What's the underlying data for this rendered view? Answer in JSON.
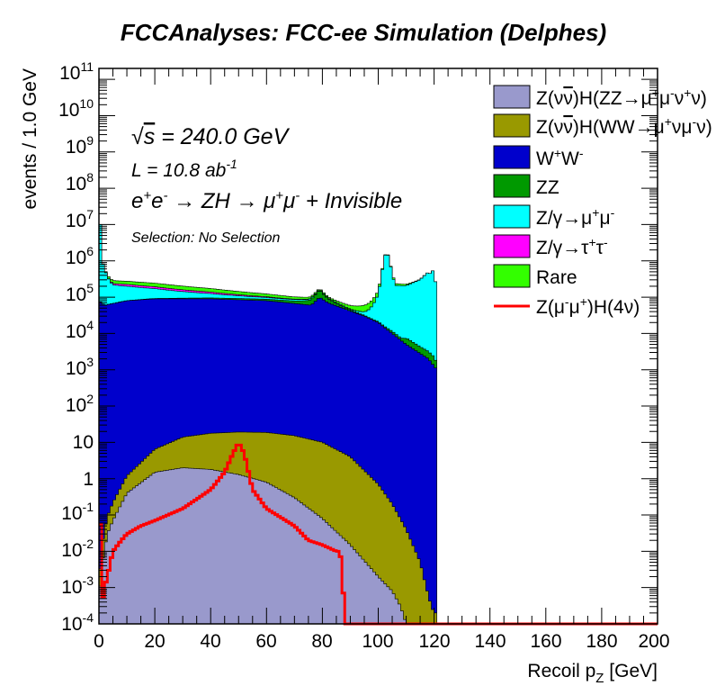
{
  "chart_data": {
    "type": "area",
    "title": "FCCAnalyses: FCC-ee Simulation (Delphes)",
    "xlabel": "Recoil p_Z [GeV]",
    "ylabel": "events / 1.0 GeV",
    "xlim": [
      0,
      200
    ],
    "ylim": [
      0.0001,
      200000000000
    ],
    "yscale": "log",
    "stacked": true,
    "legend_position": "top-right",
    "x_ticks": [
      "0",
      "20",
      "40",
      "60",
      "80",
      "100",
      "120",
      "140",
      "160",
      "180",
      "200"
    ],
    "y_ticks": [
      "10^-4",
      "10^-3",
      "10^-2",
      "10^-1",
      "1",
      "10",
      "10^2",
      "10^3",
      "10^4",
      "10^5",
      "10^6",
      "10^7",
      "10^8",
      "10^9",
      "10^10",
      "10^11"
    ],
    "annotations": {
      "sqrt_s": "= 240.0 GeV",
      "lumi": "L = 10.8 ab",
      "lumi_exp": "-1",
      "process": "e+e- → ZH → μ+μ- + Invisible",
      "selection": "Selection: No Selection"
    },
    "series": [
      {
        "name": "Z(νν̄)H(ZZ→μ+μ-ν+ν)",
        "color": "#9999cc",
        "x": [
          0,
          1,
          3,
          5,
          10,
          20,
          30,
          40,
          50,
          60,
          70,
          80,
          90,
          100,
          105,
          108,
          110,
          115,
          120,
          121
        ],
        "y": [
          0.0003,
          0.004,
          0.03,
          0.07,
          0.4,
          1.5,
          2,
          1.8,
          1.3,
          0.8,
          0.3,
          0.08,
          0.015,
          0.002,
          0.0008,
          0.0003,
          0.0001,
          0.0001,
          0.0001,
          0.0001
        ]
      },
      {
        "name": "Z(νν̄)H(WW→μ+νμ-ν)",
        "color": "#999900",
        "x": [
          0,
          1,
          3,
          5,
          10,
          20,
          30,
          40,
          50,
          60,
          70,
          80,
          90,
          100,
          105,
          110,
          115,
          120,
          121
        ],
        "y": [
          0.0005,
          0.01,
          0.06,
          0.15,
          0.8,
          5,
          12,
          16,
          18,
          18,
          15,
          10,
          4,
          0.7,
          0.2,
          0.04,
          0.005,
          0.0001,
          0.0001
        ]
      },
      {
        "name": "W+W-",
        "color": "#0000cc",
        "x": [
          0,
          2,
          10,
          20,
          40,
          60,
          76,
          79,
          82,
          95,
          100,
          105,
          110,
          118,
          121
        ],
        "y": [
          80000,
          60000,
          80000,
          90000,
          90000,
          80000,
          60000,
          100000,
          70000,
          30000,
          20000,
          10000,
          5000,
          2000,
          1000
        ]
      },
      {
        "name": "ZZ",
        "color": "#009900",
        "x": [
          0,
          1,
          3,
          5,
          10,
          15,
          20,
          30,
          40,
          50,
          60,
          70,
          75,
          79,
          82,
          90,
          98,
          102,
          105,
          108,
          110,
          115,
          120,
          121
        ],
        "y": [
          0.01,
          3,
          50,
          200,
          600,
          1500,
          2200,
          4000,
          5500,
          7000,
          8000,
          12000,
          20000,
          60000,
          20000,
          3000,
          1000,
          1000,
          1500,
          1000,
          2500,
          1500,
          1000,
          500
        ]
      },
      {
        "name": "Z/γ→μ+μ-",
        "color": "#00ffff",
        "x": [
          0,
          1,
          3,
          5,
          10,
          20,
          40,
          60,
          75,
          79,
          82,
          90,
          95,
          100,
          102,
          103,
          104,
          106,
          110,
          115,
          118,
          119,
          120,
          121
        ],
        "y": [
          100000000,
          1000000,
          300000,
          150000,
          120000,
          80000,
          30000,
          10000,
          6000,
          5000,
          4000,
          2000,
          8000,
          100000,
          1000000,
          2000000,
          1000000,
          200000,
          200000,
          300000,
          500000,
          400000,
          700000,
          100000
        ]
      },
      {
        "name": "Z/γ→τ+τ-",
        "color": "#ff00ff",
        "x": [
          0,
          5,
          10,
          20,
          40,
          60,
          75,
          79,
          82,
          90,
          100,
          110,
          121
        ],
        "y": [
          1000,
          20000,
          25000,
          22000,
          13000,
          5000,
          1500,
          1000,
          500,
          200,
          100,
          50,
          10
        ]
      },
      {
        "name": "Rare",
        "color": "#33ff00",
        "x": [
          0,
          1,
          3,
          5,
          10,
          20,
          40,
          60,
          78,
          82,
          90,
          95,
          100,
          103,
          105,
          110,
          115,
          120,
          121
        ],
        "y": [
          1000,
          20000,
          40000,
          50000,
          50000,
          50000,
          35000,
          20000,
          10000,
          8000,
          12000,
          20000,
          30000,
          50000,
          30000,
          20000,
          5000,
          2000,
          100
        ]
      },
      {
        "name": "Z(μ-μ+)H(4ν)",
        "color": "#ff0000",
        "type": "line",
        "x": [
          0,
          1,
          2,
          3,
          5,
          8,
          10,
          15,
          20,
          30,
          40,
          45,
          48,
          50,
          52,
          55,
          60,
          70,
          75,
          80,
          85,
          86,
          87,
          88,
          89,
          95,
          121
        ],
        "y": [
          10,
          0.0003,
          0.001,
          0.002,
          0.01,
          0.02,
          0.03,
          0.05,
          0.07,
          0.15,
          0.5,
          1.5,
          5,
          10,
          5,
          0.5,
          0.15,
          0.05,
          0.02,
          0.015,
          0.01,
          0.01,
          0.005,
          0.0001,
          0.0001,
          0.0001,
          0.0001
        ]
      }
    ]
  }
}
